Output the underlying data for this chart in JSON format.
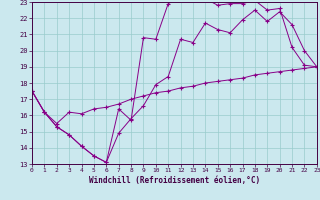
{
  "xlabel": "Windchill (Refroidissement éolien,°C)",
  "background_color": "#cbe8ee",
  "line_color": "#880088",
  "grid_color": "#99cccc",
  "xmin": 0,
  "xmax": 23,
  "ymin": 13,
  "ymax": 23,
  "series1_x": [
    0,
    1,
    2,
    3,
    4,
    5,
    6,
    7,
    8,
    9,
    10,
    11,
    12,
    13,
    14,
    15,
    16,
    17,
    18,
    19,
    20,
    21,
    22,
    23
  ],
  "series1_y": [
    17.5,
    16.2,
    15.3,
    14.8,
    14.1,
    13.5,
    13.1,
    16.4,
    15.7,
    20.8,
    20.7,
    22.9,
    23.3,
    23.2,
    23.2,
    22.8,
    22.9,
    22.9,
    23.1,
    22.5,
    22.6,
    20.2,
    19.1,
    19.0
  ],
  "series2_x": [
    0,
    1,
    2,
    3,
    4,
    5,
    6,
    7,
    8,
    9,
    10,
    11,
    12,
    13,
    14,
    15,
    16,
    17,
    18,
    19,
    20,
    21,
    22,
    23
  ],
  "series2_y": [
    17.5,
    16.2,
    15.3,
    14.8,
    14.1,
    13.5,
    13.1,
    14.9,
    15.8,
    16.6,
    17.9,
    18.4,
    20.7,
    20.5,
    21.7,
    21.3,
    21.1,
    21.9,
    22.5,
    21.8,
    22.4,
    21.6,
    20.0,
    19.0
  ],
  "series3_x": [
    0,
    1,
    2,
    3,
    4,
    5,
    6,
    7,
    8,
    9,
    10,
    11,
    12,
    13,
    14,
    15,
    16,
    17,
    18,
    19,
    20,
    21,
    22,
    23
  ],
  "series3_y": [
    17.5,
    16.2,
    15.5,
    16.2,
    16.1,
    16.4,
    16.5,
    16.7,
    17.0,
    17.2,
    17.4,
    17.5,
    17.7,
    17.8,
    18.0,
    18.1,
    18.2,
    18.3,
    18.5,
    18.6,
    18.7,
    18.8,
    18.9,
    19.0
  ]
}
